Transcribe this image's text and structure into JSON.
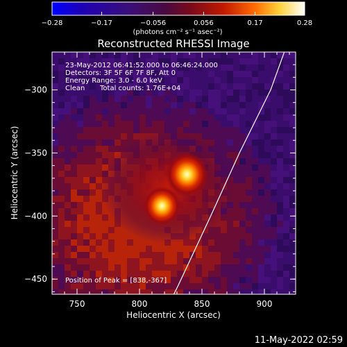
{
  "chart_data": {
    "type": "heatmap",
    "title": "Reconstructed RHESSI Image",
    "xlabel": "Heliocentric X (arcsec)",
    "ylabel": "Heliocentric Y (arcsec)",
    "xlim": [
      730,
      925
    ],
    "ylim": [
      -462,
      -270
    ],
    "x_ticks": [
      750,
      800,
      850,
      900
    ],
    "y_ticks": [
      -300,
      -350,
      -400,
      -450
    ],
    "x_tick_labels": [
      "750",
      "800",
      "850",
      "900"
    ],
    "y_tick_labels": [
      "−300",
      "−350",
      "−400",
      "−450"
    ],
    "colorbar": {
      "range": [
        -0.28,
        0.28
      ],
      "tick_values": [
        -0.28,
        -0.17,
        -0.056,
        0.056,
        0.17,
        0.28
      ],
      "tick_labels": [
        "−0.28",
        "−0.17",
        "−0.056",
        "0.056",
        "0.17",
        "0.28"
      ],
      "label": "(photons cm⁻² s⁻¹ asec⁻²)",
      "colormap": [
        "#0000ff",
        "#1a00a0",
        "#3c0f6e",
        "#6a0a3c",
        "#b01010",
        "#e04a00",
        "#ffa020",
        "#ffff7a",
        "#ffffff"
      ]
    },
    "annotations": {
      "time_range": "23-May-2012 06:41:52.000 to 06:46:24.000",
      "detectors": "Detectors: 3F 5F 6F 7F 8F, Att 0",
      "energy": "Energy Range: 3.0 - 6.0 keV",
      "clean_label": "Clean",
      "total_counts": "Total counts: 1.76E+04",
      "peak": "Position of Peak = [838,-367]"
    },
    "sources": [
      {
        "x": 838,
        "y": -367,
        "value": 0.28
      },
      {
        "x": 818,
        "y": -392,
        "value": 0.25
      }
    ],
    "limb": [
      [
        925,
        -245
      ],
      [
        905,
        -300
      ],
      [
        880,
        -350
      ],
      [
        857,
        -400
      ],
      [
        831,
        -455
      ],
      [
        826,
        -465
      ]
    ],
    "colors": {
      "background": "#380a68",
      "limb": "#ffffff"
    }
  },
  "footer": {
    "timestamp": "11-May-2022 02:59"
  }
}
